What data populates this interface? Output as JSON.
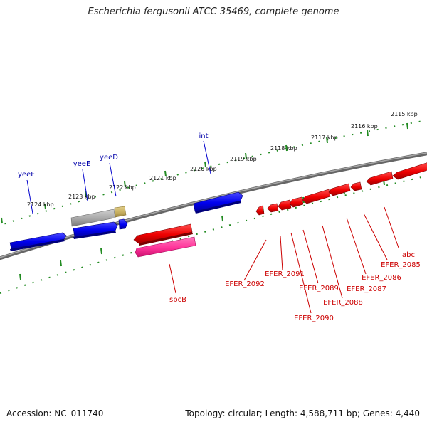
{
  "title": "Escherichia fergusonii ATCC 35469, complete genome",
  "footer": {
    "accession": "Accession: NC_011740",
    "summary": "Topology: circular; Length: 4,588,711 bp; Genes: 4,440"
  },
  "colors": {
    "backbone": "#808080",
    "tick": "#228b22",
    "forward_gene": "#0000ee",
    "reverse_gene": "#ee0000",
    "pseudo_gene": "#a0a0a0",
    "rna_gene": "#c8b060",
    "reverse_rna": "#ff3399",
    "forward_label": "#0000aa",
    "reverse_label": "#cc0000"
  },
  "scale_labels": [
    "2115 kbp",
    "2116 kbp",
    "2117 kbp",
    "2118 kbp",
    "2119 kbp",
    "2120 kbp",
    "2121 kbp",
    "2122 kbp",
    "2123 kbp",
    "2124 kbp"
  ],
  "gene_labels_forward": [
    "yeeF",
    "yeeE",
    "yeeD",
    "int"
  ],
  "gene_labels_reverse": [
    "sbcB",
    "EFER_2092",
    "EFER_2091",
    "EFER_2090",
    "EFER_2089",
    "EFER_2088",
    "EFER_2087",
    "EFER_2086",
    "EFER_2085",
    "abc"
  ]
}
